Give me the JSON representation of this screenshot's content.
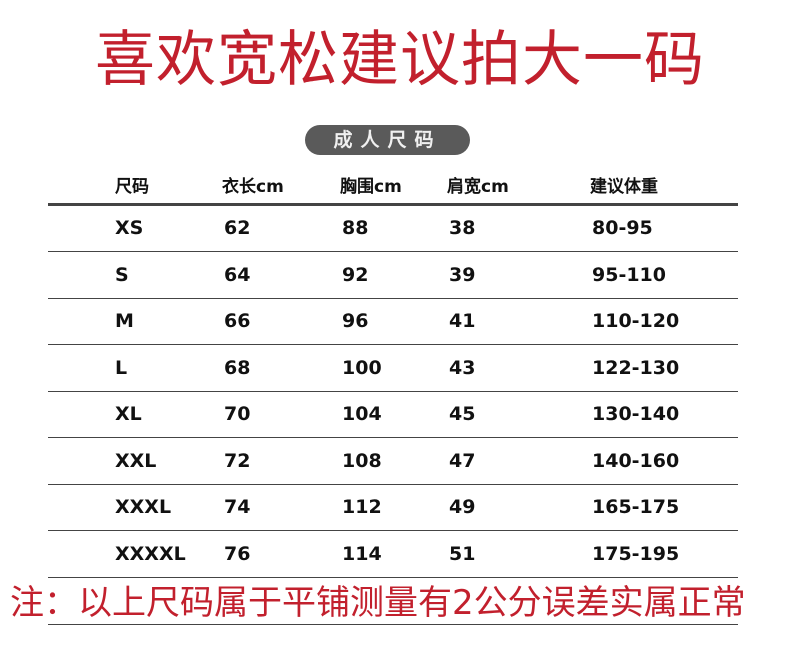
{
  "title": "喜欢宽松建议拍大一码",
  "badge": "成人尺码",
  "columns": [
    "尺码",
    "衣长cm",
    "胸围cm",
    "肩宽cm",
    "建议体重"
  ],
  "rows": [
    [
      "XS",
      "62",
      "88",
      "38",
      "80-95"
    ],
    [
      "S",
      "64",
      "92",
      "39",
      "95-110"
    ],
    [
      "M",
      "66",
      "96",
      "41",
      "110-120"
    ],
    [
      "L",
      "68",
      "100",
      "43",
      "122-130"
    ],
    [
      "XL",
      "70",
      "104",
      "45",
      "130-140"
    ],
    [
      "XXL",
      "72",
      "108",
      "47",
      "140-160"
    ],
    [
      "XXXL",
      "74",
      "112",
      "49",
      "165-175"
    ],
    [
      "XXXXL",
      "76",
      "114",
      "51",
      "175-195"
    ]
  ],
  "note": "注：以上尺码属于平铺测量有2公分误差实属正常",
  "colors": {
    "accent": "#c2202d",
    "badge": "#5a5a5a"
  }
}
